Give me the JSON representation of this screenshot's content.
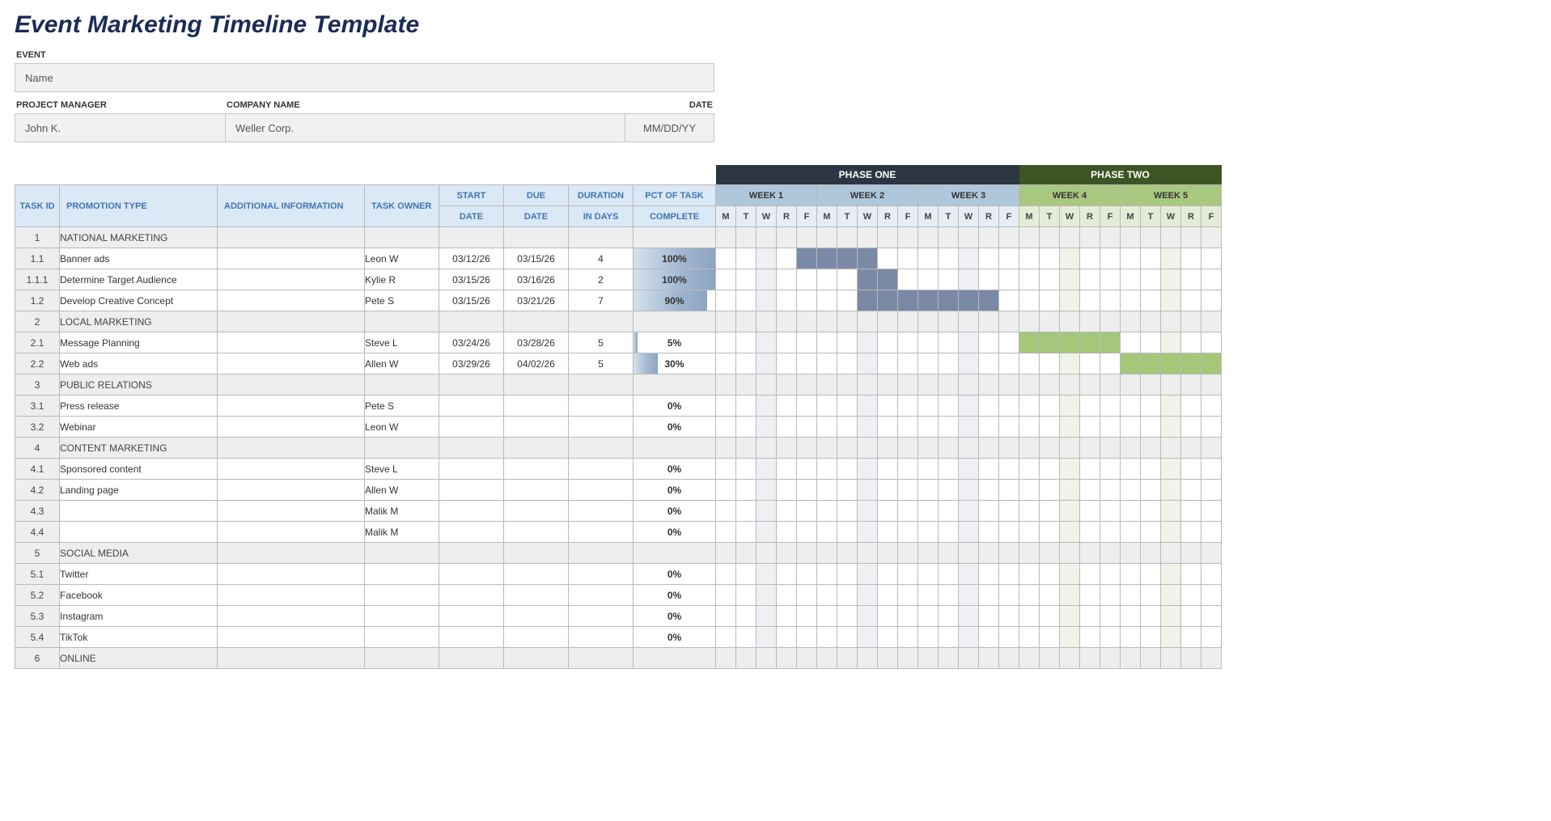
{
  "title": "Event Marketing Timeline Template",
  "meta": {
    "event_label": "EVENT",
    "event_value": "Name",
    "pm_label": "PROJECT MANAGER",
    "pm_value": "John K.",
    "company_label": "COMPANY NAME",
    "company_value": "Weller Corp.",
    "date_label": "DATE",
    "date_value": "MM/DD/YY"
  },
  "columns": {
    "task_id": "TASK ID",
    "promotion": "PROMOTION TYPE",
    "info": "ADDITIONAL INFORMATION",
    "owner": "TASK OWNER",
    "start1": "START",
    "start2": "DATE",
    "due1": "DUE",
    "due2": "DATE",
    "dur1": "DURATION",
    "dur2": "IN DAYS",
    "pct1": "PCT OF TASK",
    "pct2": "COMPLETE"
  },
  "phases": [
    {
      "label": "PHASE ONE",
      "cls": "one",
      "weeks": [
        "WEEK 1",
        "WEEK 2",
        "WEEK 3"
      ],
      "weeks_cls": "p1",
      "days_cls": "p1",
      "alt_cls": "alt",
      "bar_cls": "bar1"
    },
    {
      "label": "PHASE TWO",
      "cls": "two",
      "weeks": [
        "WEEK 4",
        "WEEK 5"
      ],
      "weeks_cls": "p2",
      "days_cls": "p2",
      "alt_cls": "alt2",
      "bar_cls": "bar2"
    }
  ],
  "days": [
    "M",
    "T",
    "W",
    "R",
    "F"
  ],
  "alt_days": [
    2
  ],
  "rows": [
    {
      "type": "section",
      "id": "1",
      "name": "NATIONAL MARKETING"
    },
    {
      "type": "task",
      "id": "1.1",
      "name": "Banner ads",
      "owner": "Leon W",
      "start": "03/12/26",
      "due": "03/15/26",
      "dur": "4",
      "pct": "100%",
      "fill": 100,
      "gantt": [
        {
          "start": 4,
          "len": 4,
          "cls": "bar1"
        }
      ]
    },
    {
      "type": "subtask",
      "id": "1.1.1",
      "name": "Determine Target Audience",
      "owner": "Kylie R",
      "start": "03/15/26",
      "due": "03/16/26",
      "dur": "2",
      "pct": "100%",
      "fill": 100,
      "gantt": [
        {
          "start": 7,
          "len": 2,
          "cls": "bar1"
        }
      ]
    },
    {
      "type": "task",
      "id": "1.2",
      "name": "Develop Creative Concept",
      "owner": "Pete S",
      "start": "03/15/26",
      "due": "03/21/26",
      "dur": "7",
      "pct": "90%",
      "fill": 90,
      "gantt": [
        {
          "start": 7,
          "len": 7,
          "cls": "bar1"
        }
      ]
    },
    {
      "type": "section",
      "id": "2",
      "name": "LOCAL MARKETING"
    },
    {
      "type": "task",
      "id": "2.1",
      "name": "Message Planning",
      "owner": "Steve L",
      "start": "03/24/26",
      "due": "03/28/26",
      "dur": "5",
      "pct": "5%",
      "fill": 5,
      "gantt": [
        {
          "start": 15,
          "len": 5,
          "cls": "bar2"
        }
      ]
    },
    {
      "type": "task",
      "id": "2.2",
      "name": "Web ads",
      "owner": "Allen W",
      "start": "03/29/26",
      "due": "04/02/26",
      "dur": "5",
      "pct": "30%",
      "fill": 30,
      "gantt": [
        {
          "start": 20,
          "len": 5,
          "cls": "bar2"
        }
      ]
    },
    {
      "type": "section",
      "id": "3",
      "name": "PUBLIC RELATIONS"
    },
    {
      "type": "task",
      "id": "3.1",
      "name": "Press release",
      "owner": "Pete S",
      "start": "",
      "due": "",
      "dur": "",
      "pct": "0%",
      "fill": 0,
      "gantt": []
    },
    {
      "type": "task",
      "id": "3.2",
      "name": "Webinar",
      "owner": "Leon W",
      "start": "",
      "due": "",
      "dur": "",
      "pct": "0%",
      "fill": 0,
      "gantt": []
    },
    {
      "type": "section",
      "id": "4",
      "name": "CONTENT MARKETING"
    },
    {
      "type": "task",
      "id": "4.1",
      "name": "Sponsored content",
      "owner": "Steve L",
      "start": "",
      "due": "",
      "dur": "",
      "pct": "0%",
      "fill": 0,
      "gantt": []
    },
    {
      "type": "task",
      "id": "4.2",
      "name": "Landing page",
      "owner": "Allen W",
      "start": "",
      "due": "",
      "dur": "",
      "pct": "0%",
      "fill": 0,
      "gantt": []
    },
    {
      "type": "task",
      "id": "4.3",
      "name": "",
      "owner": "Malik M",
      "start": "",
      "due": "",
      "dur": "",
      "pct": "0%",
      "fill": 0,
      "gantt": []
    },
    {
      "type": "task",
      "id": "4.4",
      "name": "",
      "owner": "Malik M",
      "start": "",
      "due": "",
      "dur": "",
      "pct": "0%",
      "fill": 0,
      "gantt": []
    },
    {
      "type": "section",
      "id": "5",
      "name": "SOCIAL MEDIA"
    },
    {
      "type": "task",
      "id": "5.1",
      "name": "Twitter",
      "owner": "",
      "start": "",
      "due": "",
      "dur": "",
      "pct": "0%",
      "fill": 0,
      "gantt": []
    },
    {
      "type": "task",
      "id": "5.2",
      "name": "Facebook",
      "owner": "",
      "start": "",
      "due": "",
      "dur": "",
      "pct": "0%",
      "fill": 0,
      "gantt": []
    },
    {
      "type": "task",
      "id": "5.3",
      "name": "Instagram",
      "owner": "",
      "start": "",
      "due": "",
      "dur": "",
      "pct": "0%",
      "fill": 0,
      "gantt": []
    },
    {
      "type": "task",
      "id": "5.4",
      "name": "TikTok",
      "owner": "",
      "start": "",
      "due": "",
      "dur": "",
      "pct": "0%",
      "fill": 0,
      "gantt": []
    },
    {
      "type": "section",
      "id": "6",
      "name": "ONLINE"
    }
  ]
}
